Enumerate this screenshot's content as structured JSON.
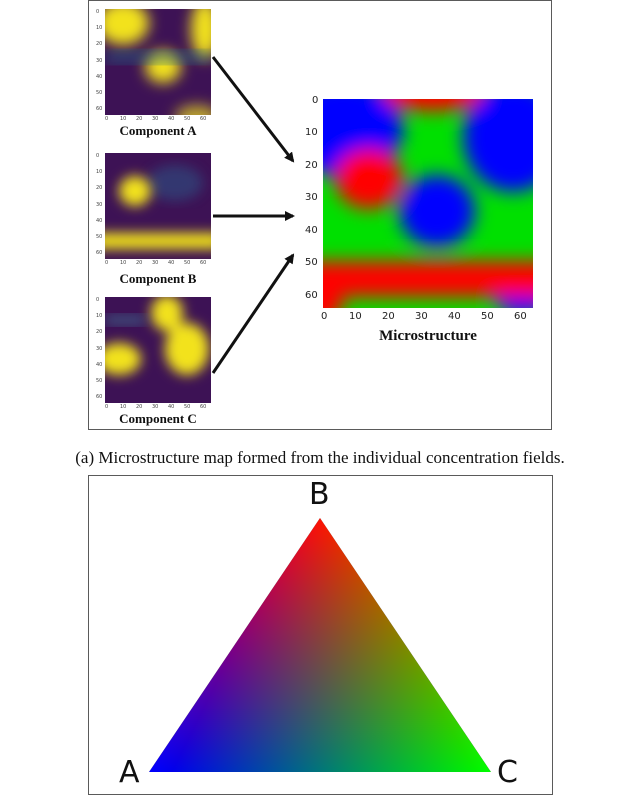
{
  "figure_a": {
    "components": [
      {
        "label": "Component A"
      },
      {
        "label": "Component B"
      },
      {
        "label": "Component C"
      }
    ],
    "component_ticks": {
      "x": [
        "0",
        "10",
        "20",
        "30",
        "40",
        "50",
        "60"
      ],
      "y": [
        "0",
        "10",
        "20",
        "30",
        "40",
        "50",
        "60"
      ]
    },
    "microstructure": {
      "label": "Microstructure",
      "x_ticks": [
        "0",
        "10",
        "20",
        "30",
        "40",
        "50",
        "60"
      ],
      "y_ticks": [
        "0",
        "10",
        "20",
        "30",
        "40",
        "50",
        "60"
      ]
    },
    "caption": "(a) Microstructure map formed from the individual concentration fields.",
    "colors": {
      "low": "#3d1255",
      "high": "#f2e21c",
      "A": "#0000ff",
      "B": "#ff0000",
      "C": "#00ff00"
    }
  },
  "figure_b": {
    "vertex_labels": {
      "top": "B",
      "left": "A",
      "right": "C"
    }
  }
}
